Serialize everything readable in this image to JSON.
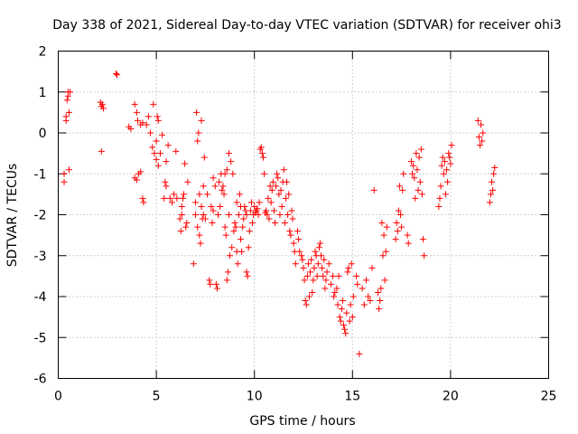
{
  "chart_data": {
    "type": "scatter",
    "title": "Day 338 of 2021, Sidereal Day-to-day VTEC variation (SDTVAR) for receiver ohi3",
    "xlabel": "GPS time / hours",
    "ylabel": "SDTVAR / TECUs",
    "xlim": [
      0,
      25
    ],
    "ylim": [
      -6,
      2
    ],
    "x_ticks": [
      0,
      5,
      10,
      15,
      20,
      25
    ],
    "y_ticks": [
      -6,
      -5,
      -4,
      -3,
      -2,
      -1,
      0,
      1,
      2
    ],
    "grid": true,
    "marker": "plus",
    "marker_color": "#ff0000",
    "series": [
      {
        "name": "SDTVAR",
        "points": [
          [
            0.3,
            -1.2
          ],
          [
            0.3,
            -1.0
          ],
          [
            0.4,
            0.3
          ],
          [
            0.4,
            0.4
          ],
          [
            0.45,
            0.8
          ],
          [
            0.5,
            0.9
          ],
          [
            0.5,
            1.0
          ],
          [
            0.55,
            -0.9
          ],
          [
            0.55,
            0.5
          ],
          [
            0.6,
            1.0
          ],
          [
            2.15,
            0.75
          ],
          [
            2.2,
            0.65
          ],
          [
            2.2,
            -0.45
          ],
          [
            2.25,
            0.7
          ],
          [
            2.3,
            0.6
          ],
          [
            2.95,
            1.45
          ],
          [
            3.0,
            1.42
          ],
          [
            3.6,
            0.15
          ],
          [
            3.7,
            0.1
          ],
          [
            3.9,
            0.7
          ],
          [
            3.9,
            -1.1
          ],
          [
            4.0,
            0.5
          ],
          [
            4.0,
            -1.15
          ],
          [
            4.05,
            0.3
          ],
          [
            4.1,
            -1.0
          ],
          [
            4.2,
            -0.95
          ],
          [
            4.2,
            0.2
          ],
          [
            4.3,
            0.25
          ],
          [
            4.3,
            -1.6
          ],
          [
            4.35,
            -1.7
          ],
          [
            4.5,
            0.2
          ],
          [
            4.6,
            0.4
          ],
          [
            4.7,
            0.0
          ],
          [
            4.8,
            -0.35
          ],
          [
            4.85,
            0.7
          ],
          [
            4.9,
            -0.5
          ],
          [
            5.0,
            -0.2
          ],
          [
            5.0,
            -0.65
          ],
          [
            5.05,
            0.4
          ],
          [
            5.1,
            0.3
          ],
          [
            5.1,
            -0.8
          ],
          [
            5.2,
            -0.5
          ],
          [
            5.3,
            -0.05
          ],
          [
            5.4,
            -1.6
          ],
          [
            5.45,
            -1.2
          ],
          [
            5.5,
            -0.7
          ],
          [
            5.5,
            -1.3
          ],
          [
            5.6,
            -0.3
          ],
          [
            5.7,
            -1.6
          ],
          [
            5.8,
            -1.7
          ],
          [
            5.9,
            -1.5
          ],
          [
            6.0,
            -0.45
          ],
          [
            6.05,
            -1.6
          ],
          [
            6.2,
            -2.1
          ],
          [
            6.25,
            -2.4
          ],
          [
            6.3,
            -2.0
          ],
          [
            6.3,
            -1.8
          ],
          [
            6.35,
            -1.6
          ],
          [
            6.4,
            -1.5
          ],
          [
            6.45,
            -0.75
          ],
          [
            6.5,
            -2.3
          ],
          [
            6.55,
            -2.2
          ],
          [
            6.6,
            -1.2
          ],
          [
            6.9,
            -3.2
          ],
          [
            7.0,
            -2.0
          ],
          [
            7.0,
            -1.7
          ],
          [
            7.05,
            0.5
          ],
          [
            7.1,
            -2.3
          ],
          [
            7.1,
            -0.2
          ],
          [
            7.15,
            0.0
          ],
          [
            7.2,
            -1.5
          ],
          [
            7.2,
            -2.5
          ],
          [
            7.25,
            -2.7
          ],
          [
            7.3,
            0.3
          ],
          [
            7.3,
            -1.8
          ],
          [
            7.35,
            -2.1
          ],
          [
            7.4,
            -2.0
          ],
          [
            7.4,
            -1.3
          ],
          [
            7.45,
            -0.6
          ],
          [
            7.5,
            -2.1
          ],
          [
            7.6,
            -1.5
          ],
          [
            7.7,
            -3.6
          ],
          [
            7.75,
            -3.7
          ],
          [
            7.8,
            -1.8
          ],
          [
            7.85,
            -2.2
          ],
          [
            7.9,
            -1.9
          ],
          [
            7.9,
            -1.1
          ],
          [
            8.0,
            -1.3
          ],
          [
            8.05,
            -3.7
          ],
          [
            8.1,
            -3.8
          ],
          [
            8.15,
            -2.0
          ],
          [
            8.2,
            -1.2
          ],
          [
            8.25,
            -1.8
          ],
          [
            8.3,
            -1.0
          ],
          [
            8.35,
            -1.4
          ],
          [
            8.4,
            -1.3
          ],
          [
            8.45,
            -1.5
          ],
          [
            8.5,
            -1.0
          ],
          [
            8.5,
            -2.3
          ],
          [
            8.55,
            -2.5
          ],
          [
            8.6,
            -0.9
          ],
          [
            8.6,
            -3.6
          ],
          [
            8.65,
            -3.4
          ],
          [
            8.7,
            -0.5
          ],
          [
            8.7,
            -2.0
          ],
          [
            8.75,
            -3.0
          ],
          [
            8.8,
            -0.7
          ],
          [
            8.85,
            -2.8
          ],
          [
            8.9,
            -1.0
          ],
          [
            8.95,
            -2.4
          ],
          [
            9.0,
            -2.2
          ],
          [
            9.05,
            -2.3
          ],
          [
            9.1,
            -1.7
          ],
          [
            9.1,
            -2.9
          ],
          [
            9.15,
            -3.2
          ],
          [
            9.2,
            -2.0
          ],
          [
            9.25,
            -1.5
          ],
          [
            9.3,
            -1.8
          ],
          [
            9.3,
            -2.6
          ],
          [
            9.35,
            -2.9
          ],
          [
            9.4,
            -2.3
          ],
          [
            9.45,
            -2.1
          ],
          [
            9.5,
            -1.8
          ],
          [
            9.55,
            -1.9
          ],
          [
            9.6,
            -2.0
          ],
          [
            9.6,
            -3.4
          ],
          [
            9.65,
            -3.5
          ],
          [
            9.7,
            -2.8
          ],
          [
            9.75,
            -2.4
          ],
          [
            9.8,
            -1.9
          ],
          [
            9.85,
            -1.7
          ],
          [
            9.9,
            -2.2
          ],
          [
            9.95,
            -2.0
          ],
          [
            10.0,
            -1.8
          ],
          [
            10.05,
            -1.95
          ],
          [
            10.1,
            -1.9
          ],
          [
            10.15,
            -1.85
          ],
          [
            10.2,
            -2.0
          ],
          [
            10.25,
            -1.7
          ],
          [
            10.3,
            -0.4
          ],
          [
            10.35,
            -0.35
          ],
          [
            10.4,
            -0.5
          ],
          [
            10.45,
            -0.6
          ],
          [
            10.5,
            -1.0
          ],
          [
            10.55,
            -1.95
          ],
          [
            10.6,
            -1.9
          ],
          [
            10.65,
            -2.0
          ],
          [
            10.7,
            -1.6
          ],
          [
            10.75,
            -2.1
          ],
          [
            10.8,
            -1.3
          ],
          [
            10.85,
            -1.7
          ],
          [
            10.9,
            -1.4
          ],
          [
            10.95,
            -1.2
          ],
          [
            11.0,
            -1.9
          ],
          [
            11.05,
            -2.2
          ],
          [
            11.1,
            -1.3
          ],
          [
            11.15,
            -1.0
          ],
          [
            11.2,
            -1.1
          ],
          [
            11.25,
            -1.5
          ],
          [
            11.3,
            -2.0
          ],
          [
            11.35,
            -1.4
          ],
          [
            11.4,
            -1.8
          ],
          [
            11.45,
            -1.2
          ],
          [
            11.5,
            -0.9
          ],
          [
            11.55,
            -2.2
          ],
          [
            11.6,
            -1.6
          ],
          [
            11.65,
            -1.2
          ],
          [
            11.7,
            -2.0
          ],
          [
            11.75,
            -1.5
          ],
          [
            11.8,
            -2.4
          ],
          [
            11.85,
            -2.5
          ],
          [
            11.9,
            -1.9
          ],
          [
            11.95,
            -2.1
          ],
          [
            12.0,
            -2.7
          ],
          [
            12.05,
            -2.9
          ],
          [
            12.1,
            -3.2
          ],
          [
            12.2,
            -2.4
          ],
          [
            12.25,
            -2.6
          ],
          [
            12.3,
            -2.9
          ],
          [
            12.4,
            -3.0
          ],
          [
            12.45,
            -3.1
          ],
          [
            12.5,
            -3.3
          ],
          [
            12.55,
            -3.6
          ],
          [
            12.6,
            -4.1
          ],
          [
            12.65,
            -4.2
          ],
          [
            12.7,
            -3.5
          ],
          [
            12.75,
            -3.2
          ],
          [
            12.8,
            -4.0
          ],
          [
            12.85,
            -3.4
          ],
          [
            12.9,
            -3.1
          ],
          [
            12.95,
            -3.9
          ],
          [
            13.0,
            -3.6
          ],
          [
            13.05,
            -3.3
          ],
          [
            13.1,
            -2.9
          ],
          [
            13.15,
            -3.0
          ],
          [
            13.2,
            -3.5
          ],
          [
            13.25,
            -3.2
          ],
          [
            13.3,
            -2.8
          ],
          [
            13.35,
            -2.7
          ],
          [
            13.4,
            -3.0
          ],
          [
            13.45,
            -3.3
          ],
          [
            13.5,
            -3.5
          ],
          [
            13.55,
            -3.1
          ],
          [
            13.6,
            -3.8
          ],
          [
            13.65,
            -3.6
          ],
          [
            13.7,
            -3.4
          ],
          [
            13.8,
            -3.2
          ],
          [
            13.9,
            -3.7
          ],
          [
            14.0,
            -3.5
          ],
          [
            14.05,
            -4.0
          ],
          [
            14.1,
            -3.9
          ],
          [
            14.2,
            -3.8
          ],
          [
            14.25,
            -4.2
          ],
          [
            14.3,
            -3.5
          ],
          [
            14.35,
            -4.5
          ],
          [
            14.4,
            -4.6
          ],
          [
            14.45,
            -4.3
          ],
          [
            14.5,
            -4.1
          ],
          [
            14.55,
            -4.7
          ],
          [
            14.6,
            -4.8
          ],
          [
            14.65,
            -4.9
          ],
          [
            14.7,
            -4.4
          ],
          [
            14.75,
            -3.4
          ],
          [
            14.8,
            -3.3
          ],
          [
            14.85,
            -4.6
          ],
          [
            14.9,
            -4.2
          ],
          [
            14.95,
            -3.2
          ],
          [
            15.0,
            -4.5
          ],
          [
            15.05,
            -4.0
          ],
          [
            15.2,
            -3.5
          ],
          [
            15.25,
            -3.7
          ],
          [
            15.35,
            -5.4
          ],
          [
            15.5,
            -3.8
          ],
          [
            15.6,
            -4.2
          ],
          [
            15.7,
            -3.6
          ],
          [
            15.8,
            -4.0
          ],
          [
            15.9,
            -4.1
          ],
          [
            16.0,
            -3.3
          ],
          [
            16.1,
            -1.4
          ],
          [
            16.3,
            -3.9
          ],
          [
            16.35,
            -4.3
          ],
          [
            16.4,
            -4.1
          ],
          [
            16.45,
            -3.8
          ],
          [
            16.5,
            -2.2
          ],
          [
            16.55,
            -3.0
          ],
          [
            16.6,
            -2.5
          ],
          [
            16.65,
            -3.6
          ],
          [
            16.7,
            -2.9
          ],
          [
            16.75,
            -2.3
          ],
          [
            17.2,
            -2.6
          ],
          [
            17.25,
            -2.2
          ],
          [
            17.3,
            -2.4
          ],
          [
            17.35,
            -1.9
          ],
          [
            17.4,
            -1.3
          ],
          [
            17.45,
            -2.0
          ],
          [
            17.5,
            -2.3
          ],
          [
            17.55,
            -1.4
          ],
          [
            17.6,
            -1.0
          ],
          [
            17.8,
            -2.5
          ],
          [
            17.85,
            -2.7
          ],
          [
            18.0,
            -0.7
          ],
          [
            18.05,
            -1.0
          ],
          [
            18.1,
            -0.8
          ],
          [
            18.15,
            -1.1
          ],
          [
            18.2,
            -1.6
          ],
          [
            18.25,
            -0.5
          ],
          [
            18.3,
            -0.9
          ],
          [
            18.35,
            -1.4
          ],
          [
            18.4,
            -0.6
          ],
          [
            18.45,
            -1.2
          ],
          [
            18.5,
            -0.4
          ],
          [
            18.55,
            -1.5
          ],
          [
            18.6,
            -2.6
          ],
          [
            18.65,
            -3.0
          ],
          [
            19.4,
            -1.8
          ],
          [
            19.45,
            -1.6
          ],
          [
            19.5,
            -1.3
          ],
          [
            19.55,
            -0.8
          ],
          [
            19.6,
            -0.6
          ],
          [
            19.65,
            -1.0
          ],
          [
            19.7,
            -0.7
          ],
          [
            19.75,
            -1.5
          ],
          [
            19.8,
            -0.9
          ],
          [
            19.85,
            -1.2
          ],
          [
            19.9,
            -0.5
          ],
          [
            19.95,
            -0.6
          ],
          [
            20.0,
            -0.75
          ],
          [
            20.05,
            -0.3
          ],
          [
            21.4,
            0.3
          ],
          [
            21.45,
            -0.1
          ],
          [
            21.5,
            -0.3
          ],
          [
            21.55,
            0.2
          ],
          [
            21.6,
            -0.2
          ],
          [
            21.65,
            0.0
          ],
          [
            22.0,
            -1.7
          ],
          [
            22.05,
            -1.5
          ],
          [
            22.1,
            -1.2
          ],
          [
            22.15,
            -1.4
          ],
          [
            22.2,
            -1.0
          ],
          [
            22.25,
            -0.85
          ]
        ]
      }
    ]
  }
}
